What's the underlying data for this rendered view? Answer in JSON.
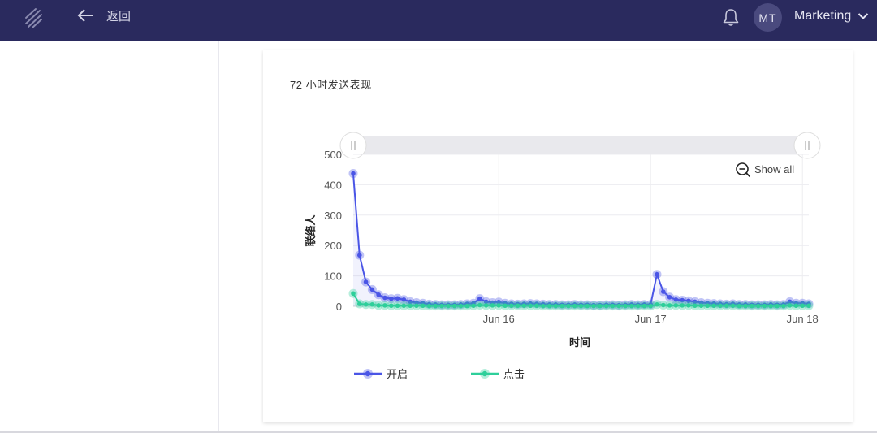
{
  "header": {
    "back_label": "返回",
    "avatar_initials": "MT",
    "account_name": "Marketing",
    "bg_color": "#2a2a5e"
  },
  "card": {
    "title": "72 小时发送表现"
  },
  "chart_data": {
    "type": "line",
    "title": "72 小时发送表现",
    "xlabel": "时间",
    "ylabel": "联络人",
    "ylim": [
      0,
      500
    ],
    "y_ticks": [
      0,
      100,
      200,
      300,
      400,
      500
    ],
    "x_ticks": [
      "Jun 16",
      "Jun 17",
      "Jun 18"
    ],
    "x_tick_hours": [
      24,
      48,
      72
    ],
    "x_start_hour": 1,
    "x_end_hour": 73,
    "grid": true,
    "zoom_button_label": "Show all",
    "legend_position": "bottom-left",
    "series": [
      {
        "name": "开启",
        "color": "#4a55e6",
        "values": [
          437,
          168,
          80,
          55,
          38,
          28,
          25,
          26,
          22,
          15,
          12,
          10,
          7,
          6,
          5,
          5,
          5,
          6,
          8,
          10,
          25,
          15,
          12,
          14,
          10,
          8,
          7,
          8,
          9,
          8,
          7,
          6,
          6,
          5,
          5,
          6,
          5,
          5,
          4,
          4,
          5,
          5,
          4,
          5,
          6,
          5,
          6,
          6,
          105,
          48,
          30,
          22,
          20,
          18,
          15,
          12,
          10,
          9,
          8,
          7,
          8,
          6,
          6,
          5,
          5,
          5,
          6,
          5,
          6,
          15,
          10,
          10,
          8
        ]
      },
      {
        "name": "点击",
        "color": "#2ecf9a",
        "values": [
          42,
          8,
          6,
          6,
          3,
          3,
          2,
          2,
          2,
          2,
          2,
          2,
          1,
          1,
          1,
          1,
          1,
          1,
          1,
          2,
          4,
          3,
          3,
          3,
          2,
          2,
          2,
          2,
          2,
          2,
          1,
          1,
          1,
          1,
          1,
          1,
          1,
          1,
          1,
          1,
          1,
          1,
          1,
          1,
          1,
          1,
          1,
          1,
          6,
          4,
          3,
          3,
          3,
          3,
          2,
          2,
          2,
          2,
          2,
          2,
          2,
          1,
          1,
          1,
          1,
          1,
          1,
          1,
          1,
          3,
          2,
          2,
          2
        ]
      }
    ]
  }
}
